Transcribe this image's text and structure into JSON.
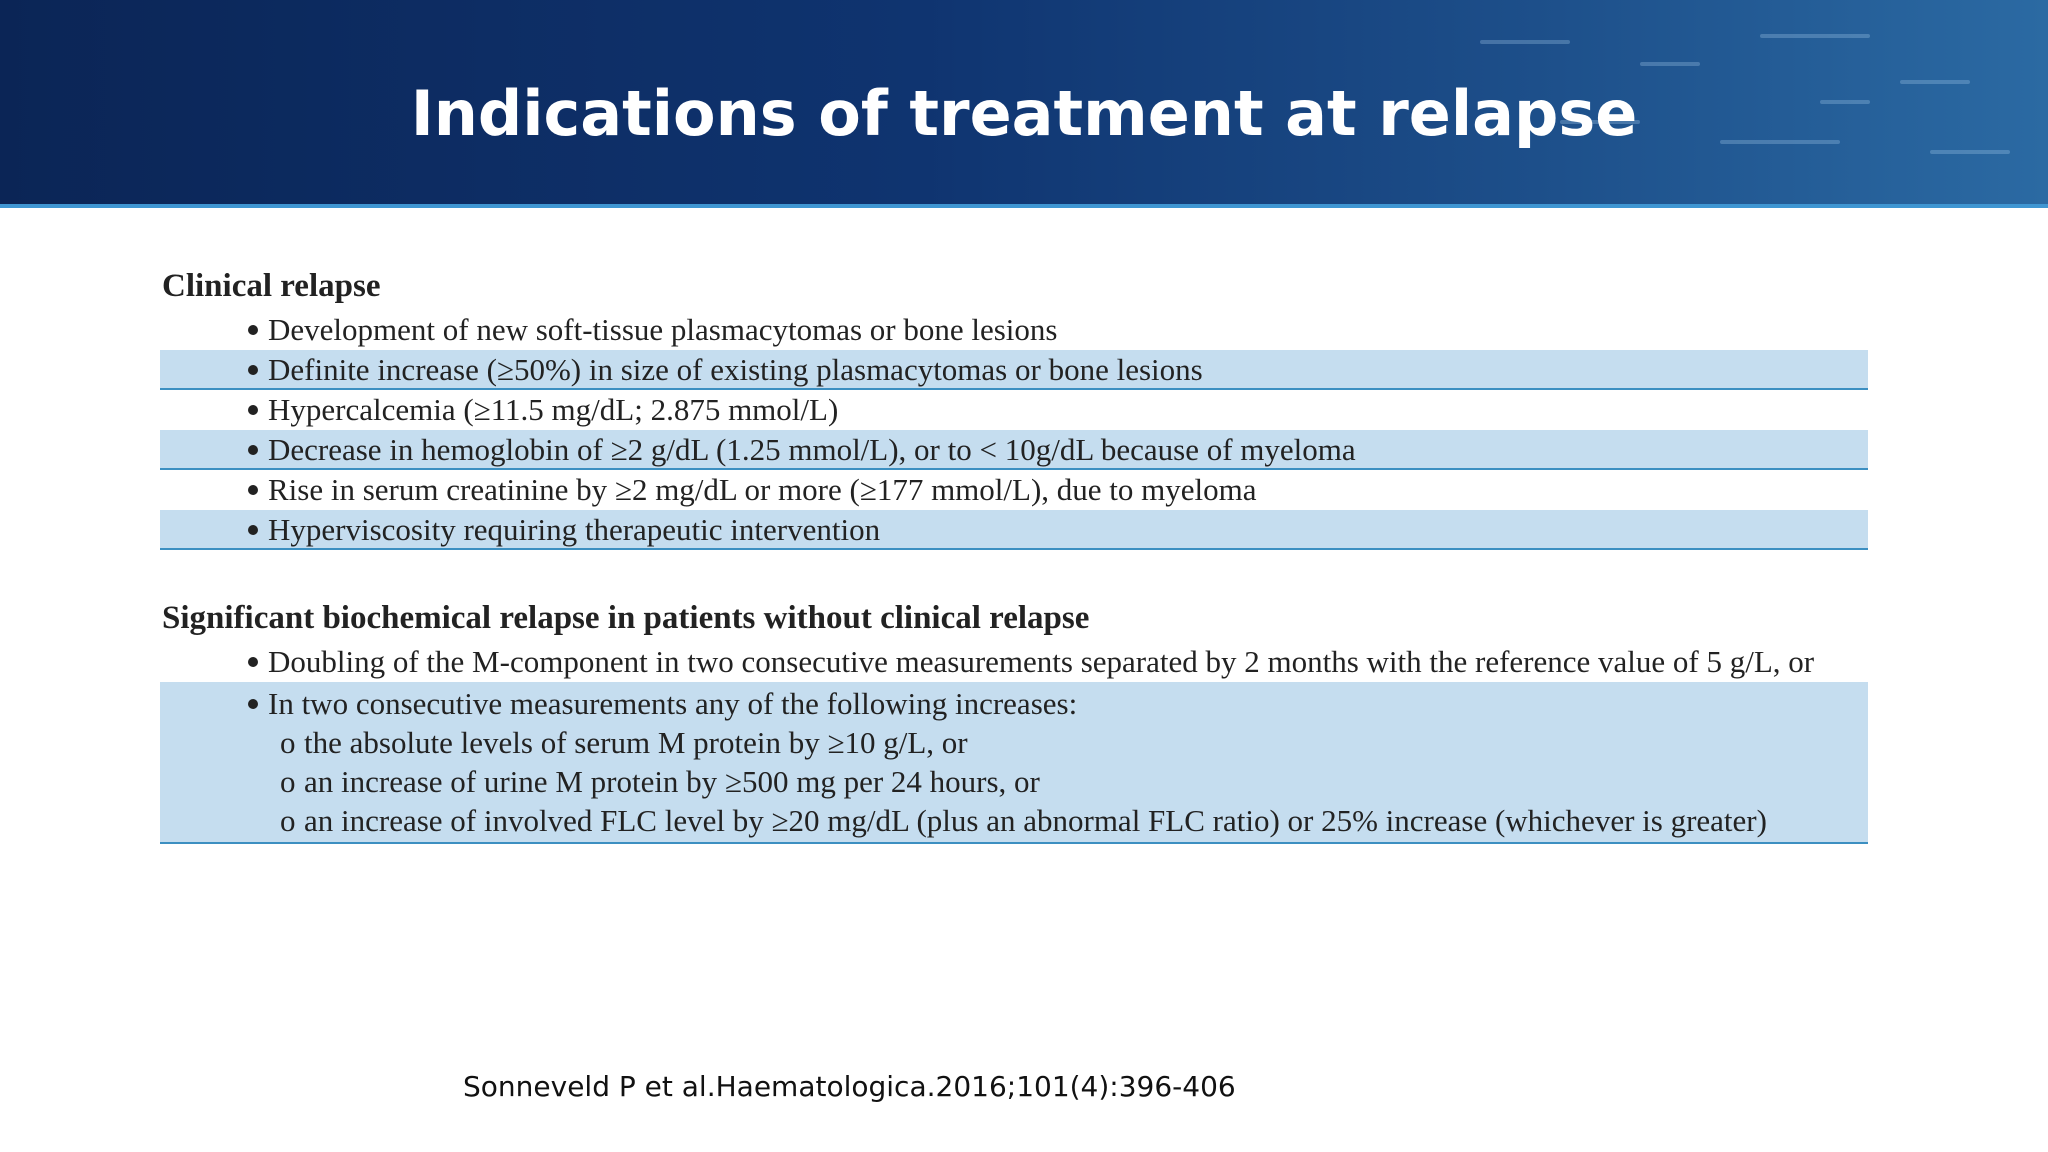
{
  "slide": {
    "title": "Indications of treatment at relapse",
    "header_color": "#0f3470",
    "accent_color": "#3f96d2",
    "band_color": "#c5ddef"
  },
  "clinical": {
    "heading": "Clinical relapse",
    "items": [
      "Development of new soft-tissue plasmacytomas or bone lesions",
      "Definite increase (≥50%) in size of existing plasmacytomas or bone lesions",
      "Hypercalcemia (≥11.5 mg/dL; 2.875 mmol/L)",
      "Decrease in hemoglobin of ≥2 g/dL (1.25 mmol/L), or to < 10g/dL because of myeloma",
      "Rise in serum creatinine by ≥2 mg/dL or more (≥177 mmol/L), due to myeloma",
      "Hyperviscosity requiring therapeutic intervention"
    ]
  },
  "biochemical": {
    "heading": "Significant biochemical relapse in patients without clinical relapse",
    "items": [
      "Doubling of the M-component in two consecutive measurements separated by 2 months with the reference value of 5 g/L, or",
      "In two consecutive measurements any of the following increases:"
    ],
    "sub_marker": "o",
    "sub_items": [
      "the absolute levels of serum M protein by ≥10 g/L, or",
      "an increase of urine M protein by ≥500 mg per 24 hours, or",
      "an increase of involved FLC level by ≥20 mg/dL (plus an abnormal FLC ratio) or 25% increase (whichever is greater)"
    ]
  },
  "citation": "Sonneveld P et al.Haematologica.2016;101(4):396-406"
}
